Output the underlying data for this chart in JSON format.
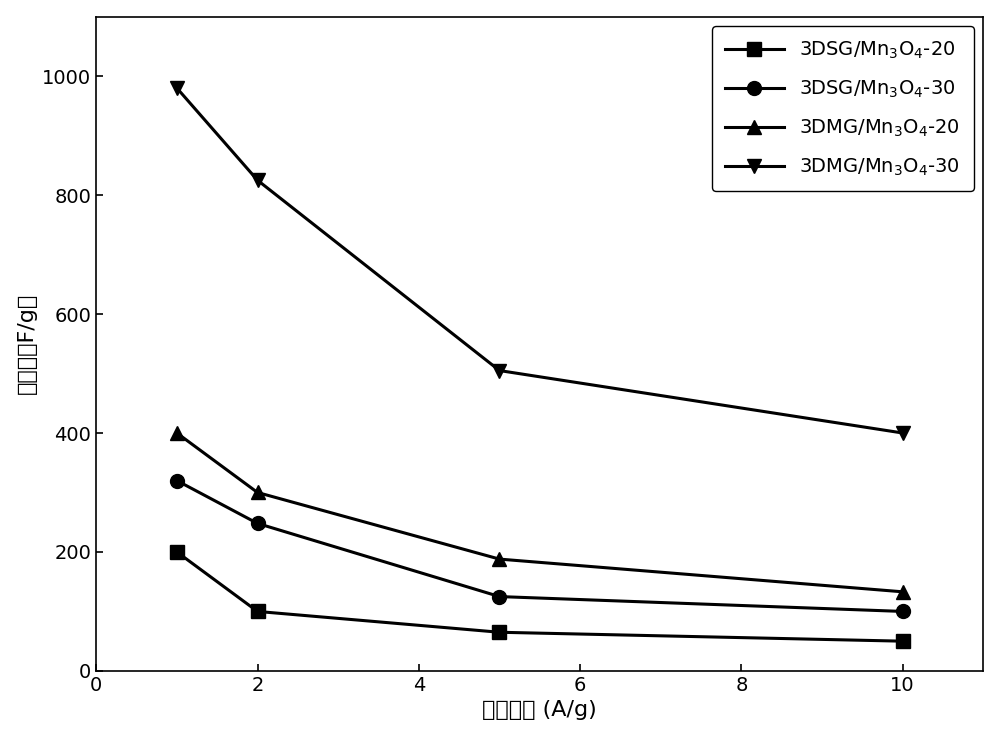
{
  "series": [
    {
      "label_math": "3DSG/Mn$_3$O$_4$-20",
      "x": [
        1,
        2,
        5,
        10
      ],
      "y": [
        200,
        100,
        65,
        50
      ],
      "marker": "s",
      "color": "#000000"
    },
    {
      "label_math": "3DSG/Mn$_3$O$_4$-30",
      "x": [
        1,
        2,
        5,
        10
      ],
      "y": [
        320,
        248,
        125,
        100
      ],
      "marker": "o",
      "color": "#000000"
    },
    {
      "label_math": "3DMG/Mn$_3$O$_4$-20",
      "x": [
        1,
        2,
        5,
        10
      ],
      "y": [
        400,
        300,
        188,
        133
      ],
      "marker": "^",
      "color": "#000000"
    },
    {
      "label_math": "3DMG/Mn$_3$O$_4$-30",
      "x": [
        1,
        2,
        5,
        10
      ],
      "y": [
        980,
        825,
        505,
        400
      ],
      "marker": "v",
      "color": "#000000"
    }
  ],
  "xlabel": "放电电流 (A/g)",
  "ylabel": "比容量（F/g）",
  "xlim": [
    0,
    11
  ],
  "ylim": [
    0,
    1100
  ],
  "xticks": [
    0,
    2,
    4,
    6,
    8,
    10
  ],
  "yticks": [
    0,
    200,
    400,
    600,
    800,
    1000
  ],
  "linewidth": 2.2,
  "markersize": 10,
  "legend_loc": "upper right",
  "legend_fontsize": 14,
  "axis_fontsize": 16,
  "tick_fontsize": 14,
  "background_color": "#ffffff"
}
